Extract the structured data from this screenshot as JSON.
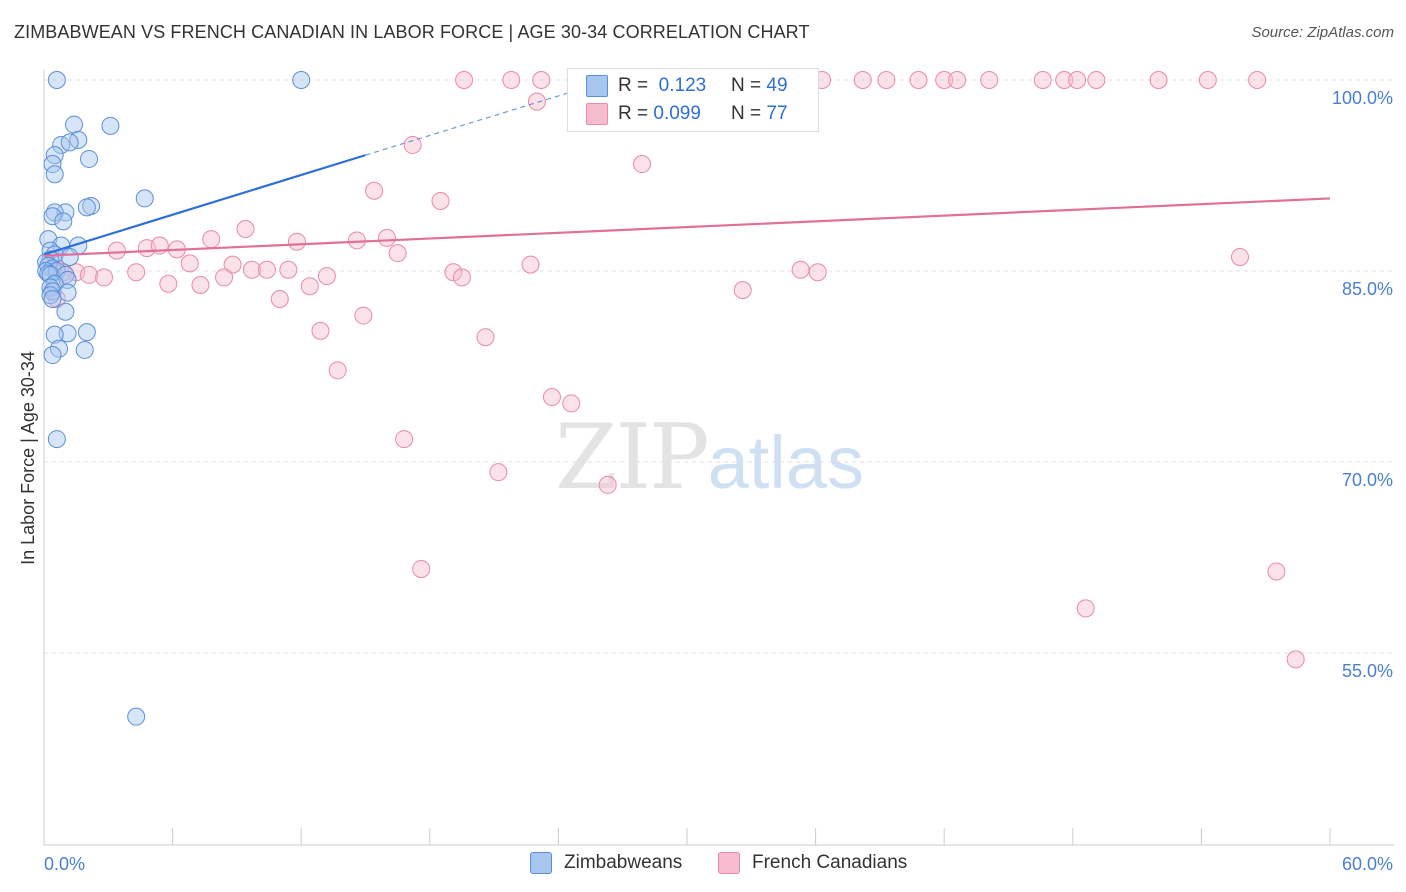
{
  "header": {
    "title": "ZIMBABWEAN VS FRENCH CANADIAN IN LABOR FORCE | AGE 30-34 CORRELATION CHART",
    "source": "Source: ZipAtlas.com"
  },
  "watermark": {
    "zip": "ZIP",
    "atlas": "atlas"
  },
  "stats": {
    "zimbabwean": {
      "r_label": "R =",
      "r_value": "0.123",
      "n_label": "N =",
      "n_value": "49"
    },
    "french_canadian": {
      "r_label": "R =",
      "r_value": "0.099",
      "n_label": "N =",
      "n_value": "77"
    }
  },
  "legend": {
    "zimbabweans": "Zimbabweans",
    "french_canadians": "French Canadians"
  },
  "colors": {
    "blue_fill": "#a7c6f0",
    "blue_stroke": "#5b8fd8",
    "blue_line": "#2f6fd6",
    "pink_fill": "#f6bccd",
    "pink_stroke": "#e98aa8",
    "pink_line": "#e07099",
    "grid": "#e0e0e0",
    "tick_text": "#4a7fd0"
  },
  "chart_data": {
    "type": "scatter",
    "title": "ZIMBABWEAN VS FRENCH CANADIAN IN LABOR FORCE | AGE 30-34 CORRELATION CHART",
    "xlabel": "",
    "ylabel": "In Labor Force | Age 30-34",
    "xlim": [
      0,
      60
    ],
    "ylim": [
      40,
      101.5
    ],
    "x_tick_labels": [
      "0.0%",
      "60.0%"
    ],
    "y_ticks": [
      55,
      70,
      85,
      100
    ],
    "y_tick_labels": [
      "55.0%",
      "70.0%",
      "85.0%",
      "100.0%"
    ],
    "grid": true,
    "legend_position": "bottom-center",
    "series": [
      {
        "name": "Zimbabweans",
        "color": "#5b8fd8",
        "points": [
          [
            0.6,
            100
          ],
          [
            12,
            100
          ],
          [
            1.4,
            96.5
          ],
          [
            3.1,
            96.4
          ],
          [
            1.6,
            95.3
          ],
          [
            0.8,
            94.9
          ],
          [
            1.2,
            95.1
          ],
          [
            0.5,
            94.1
          ],
          [
            2.1,
            93.8
          ],
          [
            0.4,
            93.4
          ],
          [
            0.5,
            92.6
          ],
          [
            4.7,
            90.7
          ],
          [
            2.2,
            90.1
          ],
          [
            2.0,
            90.0
          ],
          [
            1.0,
            89.6
          ],
          [
            0.5,
            89.6
          ],
          [
            0.4,
            89.3
          ],
          [
            0.9,
            88.9
          ],
          [
            0.2,
            87.5
          ],
          [
            0.8,
            87.0
          ],
          [
            1.6,
            87.0
          ],
          [
            0.3,
            86.6
          ],
          [
            0.5,
            86.3
          ],
          [
            1.2,
            86.1
          ],
          [
            0.3,
            85.9
          ],
          [
            0.1,
            85.7
          ],
          [
            0.2,
            85.4
          ],
          [
            0.4,
            85.2
          ],
          [
            0.1,
            85.0
          ],
          [
            0.6,
            85.0
          ],
          [
            0.2,
            84.8
          ],
          [
            0.3,
            84.7
          ],
          [
            1.0,
            84.7
          ],
          [
            1.1,
            84.3
          ],
          [
            0.5,
            84.0
          ],
          [
            0.3,
            83.7
          ],
          [
            0.4,
            83.4
          ],
          [
            1.1,
            83.3
          ],
          [
            0.3,
            83.1
          ],
          [
            0.4,
            82.8
          ],
          [
            1.0,
            81.8
          ],
          [
            1.1,
            80.1
          ],
          [
            2.0,
            80.2
          ],
          [
            0.5,
            80.0
          ],
          [
            0.7,
            78.9
          ],
          [
            1.9,
            78.8
          ],
          [
            0.4,
            78.4
          ],
          [
            0.6,
            71.8
          ],
          [
            4.3,
            50.0
          ]
        ],
        "trend": {
          "x": [
            0,
            15
          ],
          "y": [
            86.3,
            94.1
          ],
          "dashed_to": [
            27,
            100.3
          ]
        }
      },
      {
        "name": "French Canadians",
        "color": "#e98aa8",
        "points": [
          [
            19.6,
            100
          ],
          [
            21.8,
            100
          ],
          [
            23.2,
            100
          ],
          [
            25.7,
            100
          ],
          [
            26.9,
            100
          ],
          [
            28.7,
            100
          ],
          [
            30.0,
            100
          ],
          [
            31.3,
            100
          ],
          [
            32.4,
            100
          ],
          [
            33.4,
            100
          ],
          [
            36.3,
            100
          ],
          [
            38.2,
            100
          ],
          [
            39.3,
            100
          ],
          [
            40.8,
            100
          ],
          [
            42.0,
            100
          ],
          [
            42.6,
            100
          ],
          [
            44.1,
            100
          ],
          [
            46.6,
            100
          ],
          [
            47.6,
            100
          ],
          [
            48.2,
            100
          ],
          [
            49.1,
            100
          ],
          [
            52.0,
            100
          ],
          [
            54.3,
            100
          ],
          [
            56.6,
            100
          ],
          [
            23.0,
            98.3
          ],
          [
            17.2,
            94.9
          ],
          [
            27.9,
            93.4
          ],
          [
            15.4,
            91.3
          ],
          [
            18.5,
            90.5
          ],
          [
            9.4,
            88.3
          ],
          [
            7.8,
            87.5
          ],
          [
            11.8,
            87.3
          ],
          [
            14.6,
            87.4
          ],
          [
            16.0,
            87.6
          ],
          [
            3.4,
            86.6
          ],
          [
            4.8,
            86.8
          ],
          [
            6.2,
            86.7
          ],
          [
            5.4,
            87.0
          ],
          [
            16.5,
            86.4
          ],
          [
            6.8,
            85.6
          ],
          [
            8.8,
            85.5
          ],
          [
            22.7,
            85.5
          ],
          [
            9.7,
            85.1
          ],
          [
            10.4,
            85.1
          ],
          [
            11.4,
            85.1
          ],
          [
            0.6,
            85.2
          ],
          [
            0.9,
            84.9
          ],
          [
            1.5,
            84.9
          ],
          [
            2.1,
            84.7
          ],
          [
            2.8,
            84.5
          ],
          [
            4.3,
            84.9
          ],
          [
            19.1,
            84.9
          ],
          [
            13.2,
            84.6
          ],
          [
            19.5,
            84.5
          ],
          [
            8.4,
            84.5
          ],
          [
            5.8,
            84.0
          ],
          [
            7.3,
            83.9
          ],
          [
            12.4,
            83.8
          ],
          [
            32.6,
            83.5
          ],
          [
            35.3,
            85.1
          ],
          [
            36.1,
            84.9
          ],
          [
            55.8,
            86.1
          ],
          [
            0.4,
            83.4
          ],
          [
            0.6,
            82.8
          ],
          [
            11.0,
            82.8
          ],
          [
            14.9,
            81.5
          ],
          [
            12.9,
            80.3
          ],
          [
            20.6,
            79.8
          ],
          [
            13.7,
            77.2
          ],
          [
            23.7,
            75.1
          ],
          [
            24.6,
            74.6
          ],
          [
            16.8,
            71.8
          ],
          [
            21.2,
            69.2
          ],
          [
            26.3,
            68.2
          ],
          [
            17.6,
            61.6
          ],
          [
            57.5,
            61.4
          ],
          [
            48.6,
            58.5
          ],
          [
            58.4,
            54.5
          ]
        ],
        "trend": {
          "x": [
            0,
            60
          ],
          "y": [
            86.2,
            90.7
          ]
        }
      }
    ]
  }
}
